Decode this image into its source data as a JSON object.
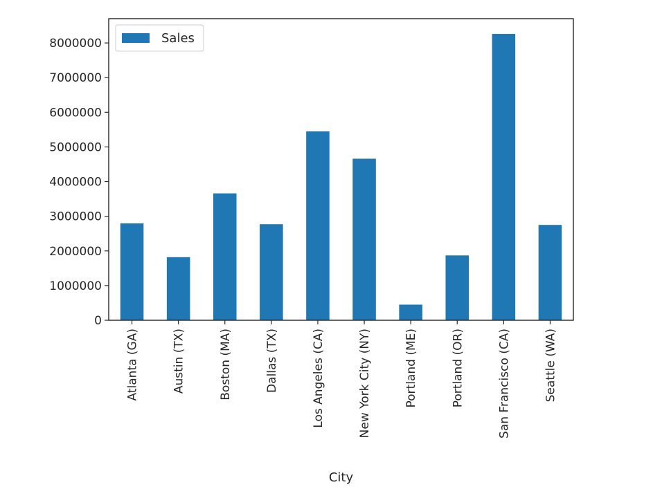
{
  "chart_data": {
    "type": "bar",
    "xlabel": "City",
    "ylabel": "",
    "ylim": [
      0,
      8700000
    ],
    "yticks": [
      0,
      1000000,
      2000000,
      3000000,
      4000000,
      5000000,
      6000000,
      7000000,
      8000000
    ],
    "ytick_labels": [
      "0",
      "1000000",
      "2000000",
      "3000000",
      "4000000",
      "5000000",
      "6000000",
      "7000000",
      "8000000"
    ],
    "categories": [
      "Atlanta (GA)",
      "Austin (TX)",
      "Boston (MA)",
      "Dallas (TX)",
      "Los Angeles (CA)",
      "New York City (NY)",
      "Portland (ME)",
      "Portland (OR)",
      "San Francisco (CA)",
      "Seattle (WA)"
    ],
    "series": [
      {
        "name": "Sales",
        "color": "#1f77b4",
        "values": [
          2795000,
          1820000,
          3660000,
          2770000,
          5450000,
          4660000,
          450000,
          1870000,
          8260000,
          2750000
        ]
      }
    ],
    "legend": {
      "position": "top-left",
      "entries": [
        "Sales"
      ]
    },
    "grid": false
  }
}
